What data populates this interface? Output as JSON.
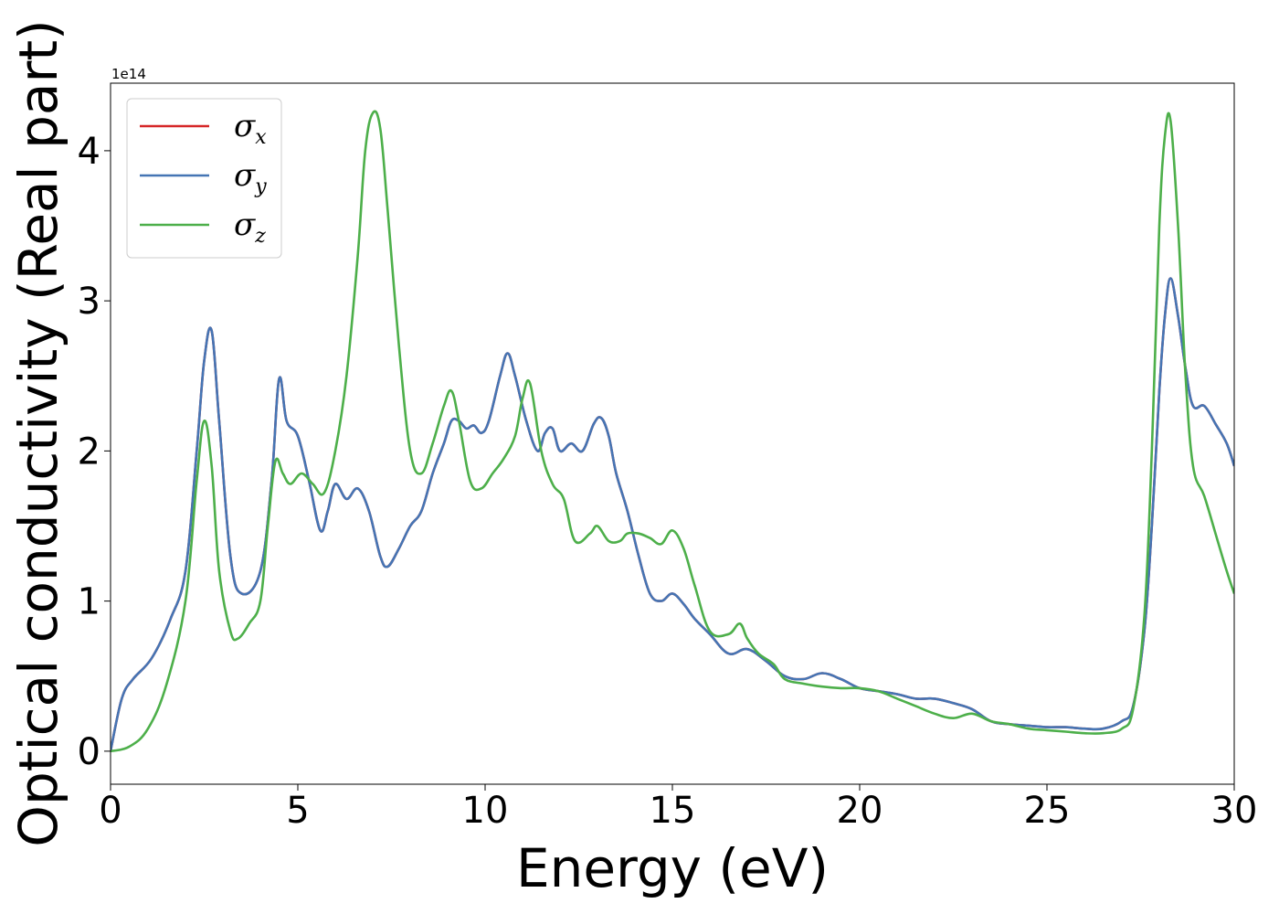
{
  "chart_data": {
    "type": "line",
    "xlabel": "Energy (eV)",
    "ylabel": "Optical conductivity (Real part)",
    "y_multiplier": "1e14",
    "xlim": [
      0,
      30
    ],
    "ylim": [
      -0.22,
      4.45
    ],
    "xticks": [
      0,
      5,
      10,
      15,
      20,
      25,
      30
    ],
    "yticks": [
      0,
      1,
      2,
      3,
      4
    ],
    "grid": false,
    "legend_position": "top-left",
    "series": [
      {
        "name": "σx",
        "symbol": "σ",
        "subscript": "x",
        "color": "#d62728",
        "x": [
          0,
          0.3,
          0.6,
          1.1,
          1.6,
          2.0,
          2.3,
          2.5,
          2.7,
          2.9,
          3.2,
          3.5,
          4.0,
          4.3,
          4.5,
          4.7,
          5.0,
          5.3,
          5.6,
          5.8,
          6.0,
          6.3,
          6.6,
          6.9,
          7.2,
          7.4,
          7.7,
          8.0,
          8.3,
          8.6,
          8.9,
          9.1,
          9.3,
          9.5,
          9.7,
          9.9,
          10.1,
          10.4,
          10.6,
          10.8,
          11.1,
          11.4,
          11.6,
          11.8,
          12.0,
          12.3,
          12.6,
          12.9,
          13.1,
          13.3,
          13.5,
          13.8,
          14.1,
          14.4,
          14.7,
          15.0,
          15.3,
          15.6,
          16.0,
          16.5,
          17.0,
          17.5,
          18.0,
          18.5,
          19.0,
          19.5,
          20.0,
          20.5,
          21.0,
          21.5,
          22.0,
          22.5,
          23.0,
          23.5,
          24.0,
          24.5,
          25.0,
          25.5,
          26.0,
          26.5,
          27.0,
          27.3,
          27.6,
          27.8,
          28.0,
          28.15,
          28.3,
          28.5,
          28.7,
          28.9,
          29.2,
          29.5,
          29.8,
          30.0
        ],
        "y": [
          0,
          0.35,
          0.48,
          0.62,
          0.88,
          1.2,
          2.0,
          2.6,
          2.8,
          2.2,
          1.3,
          1.05,
          1.2,
          1.8,
          2.48,
          2.2,
          2.1,
          1.8,
          1.47,
          1.6,
          1.78,
          1.68,
          1.75,
          1.6,
          1.3,
          1.23,
          1.35,
          1.5,
          1.6,
          1.85,
          2.05,
          2.2,
          2.2,
          2.15,
          2.17,
          2.12,
          2.2,
          2.5,
          2.65,
          2.5,
          2.2,
          2.0,
          2.12,
          2.15,
          2.0,
          2.05,
          2.0,
          2.18,
          2.22,
          2.1,
          1.85,
          1.6,
          1.3,
          1.05,
          1.0,
          1.05,
          0.98,
          0.88,
          0.78,
          0.65,
          0.68,
          0.6,
          0.5,
          0.48,
          0.52,
          0.48,
          0.42,
          0.4,
          0.38,
          0.35,
          0.35,
          0.32,
          0.28,
          0.2,
          0.18,
          0.17,
          0.16,
          0.16,
          0.15,
          0.15,
          0.2,
          0.3,
          0.8,
          1.5,
          2.4,
          2.9,
          3.15,
          2.9,
          2.55,
          2.3,
          2.3,
          2.18,
          2.05,
          1.9
        ]
      },
      {
        "name": "σy",
        "symbol": "σ",
        "subscript": "y",
        "color": "#4575b4",
        "x": [
          0,
          0.3,
          0.6,
          1.1,
          1.6,
          2.0,
          2.3,
          2.5,
          2.7,
          2.9,
          3.2,
          3.5,
          4.0,
          4.3,
          4.5,
          4.7,
          5.0,
          5.3,
          5.6,
          5.8,
          6.0,
          6.3,
          6.6,
          6.9,
          7.2,
          7.4,
          7.7,
          8.0,
          8.3,
          8.6,
          8.9,
          9.1,
          9.3,
          9.5,
          9.7,
          9.9,
          10.1,
          10.4,
          10.6,
          10.8,
          11.1,
          11.4,
          11.6,
          11.8,
          12.0,
          12.3,
          12.6,
          12.9,
          13.1,
          13.3,
          13.5,
          13.8,
          14.1,
          14.4,
          14.7,
          15.0,
          15.3,
          15.6,
          16.0,
          16.5,
          17.0,
          17.5,
          18.0,
          18.5,
          19.0,
          19.5,
          20.0,
          20.5,
          21.0,
          21.5,
          22.0,
          22.5,
          23.0,
          23.5,
          24.0,
          24.5,
          25.0,
          25.5,
          26.0,
          26.5,
          27.0,
          27.3,
          27.6,
          27.8,
          28.0,
          28.15,
          28.3,
          28.5,
          28.7,
          28.9,
          29.2,
          29.5,
          29.8,
          30.0
        ],
        "y": [
          0,
          0.35,
          0.48,
          0.62,
          0.88,
          1.2,
          2.0,
          2.6,
          2.8,
          2.2,
          1.3,
          1.05,
          1.2,
          1.8,
          2.48,
          2.2,
          2.1,
          1.8,
          1.47,
          1.6,
          1.78,
          1.68,
          1.75,
          1.6,
          1.3,
          1.23,
          1.35,
          1.5,
          1.6,
          1.85,
          2.05,
          2.2,
          2.2,
          2.15,
          2.17,
          2.12,
          2.2,
          2.5,
          2.65,
          2.5,
          2.2,
          2.0,
          2.12,
          2.15,
          2.0,
          2.05,
          2.0,
          2.18,
          2.22,
          2.1,
          1.85,
          1.6,
          1.3,
          1.05,
          1.0,
          1.05,
          0.98,
          0.88,
          0.78,
          0.65,
          0.68,
          0.6,
          0.5,
          0.48,
          0.52,
          0.48,
          0.42,
          0.4,
          0.38,
          0.35,
          0.35,
          0.32,
          0.28,
          0.2,
          0.18,
          0.17,
          0.16,
          0.16,
          0.15,
          0.15,
          0.2,
          0.3,
          0.8,
          1.5,
          2.4,
          2.9,
          3.15,
          2.9,
          2.55,
          2.3,
          2.3,
          2.18,
          2.05,
          1.9
        ]
      },
      {
        "name": "σz",
        "symbol": "σ",
        "subscript": "z",
        "color": "#4daf4a",
        "x": [
          0,
          0.5,
          1.0,
          1.5,
          2.0,
          2.3,
          2.5,
          2.7,
          2.9,
          3.2,
          3.4,
          3.7,
          4.0,
          4.2,
          4.4,
          4.6,
          4.8,
          5.1,
          5.4,
          5.7,
          6.0,
          6.3,
          6.6,
          6.8,
          7.0,
          7.2,
          7.4,
          7.7,
          8.0,
          8.3,
          8.6,
          8.9,
          9.1,
          9.3,
          9.6,
          9.9,
          10.2,
          10.5,
          10.8,
          11.0,
          11.2,
          11.5,
          11.8,
          12.1,
          12.4,
          12.8,
          13.0,
          13.3,
          13.6,
          13.8,
          14.1,
          14.4,
          14.7,
          15.0,
          15.3,
          15.6,
          16.0,
          16.5,
          16.8,
          17.0,
          17.3,
          17.7,
          18.0,
          18.5,
          19.0,
          19.5,
          20.0,
          20.5,
          21.0,
          21.5,
          22.0,
          22.5,
          23.0,
          23.5,
          24.0,
          24.5,
          25.0,
          25.5,
          26.0,
          26.5,
          27.0,
          27.3,
          27.6,
          27.8,
          28.0,
          28.15,
          28.3,
          28.5,
          28.7,
          28.9,
          29.2,
          29.5,
          29.8,
          30.0
        ],
        "y": [
          0,
          0.03,
          0.15,
          0.45,
          1.0,
          1.8,
          2.2,
          1.9,
          1.2,
          0.8,
          0.75,
          0.85,
          1.0,
          1.5,
          1.93,
          1.85,
          1.78,
          1.85,
          1.78,
          1.72,
          2.0,
          2.5,
          3.3,
          4.0,
          4.25,
          4.15,
          3.6,
          2.7,
          2.0,
          1.85,
          2.05,
          2.3,
          2.4,
          2.2,
          1.8,
          1.75,
          1.85,
          1.95,
          2.1,
          2.35,
          2.45,
          2.0,
          1.78,
          1.68,
          1.4,
          1.45,
          1.5,
          1.4,
          1.4,
          1.45,
          1.45,
          1.42,
          1.38,
          1.47,
          1.35,
          1.1,
          0.8,
          0.78,
          0.85,
          0.75,
          0.65,
          0.58,
          0.48,
          0.45,
          0.43,
          0.42,
          0.42,
          0.4,
          0.35,
          0.3,
          0.25,
          0.22,
          0.25,
          0.2,
          0.18,
          0.15,
          0.14,
          0.13,
          0.12,
          0.12,
          0.15,
          0.28,
          0.9,
          2.0,
          3.5,
          4.1,
          4.2,
          3.5,
          2.5,
          1.9,
          1.7,
          1.45,
          1.2,
          1.05
        ]
      }
    ]
  }
}
